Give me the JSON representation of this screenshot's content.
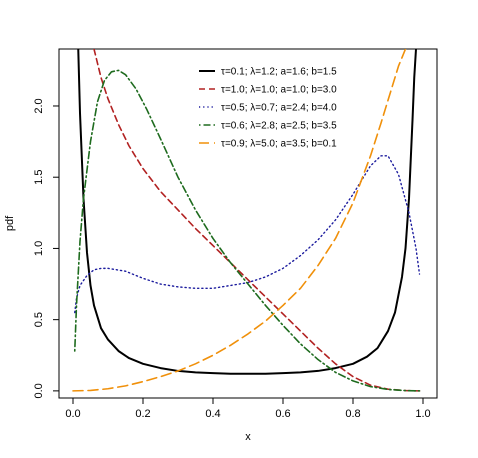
{
  "chart_data": {
    "type": "line",
    "xlabel": "x",
    "ylabel": "pdf",
    "xlim": [
      -0.04,
      1.04
    ],
    "ylim": [
      -0.05,
      2.4
    ],
    "x_ticks": [
      "0.0",
      "0.2",
      "0.4",
      "0.6",
      "0.8",
      "1.0"
    ],
    "x_tick_values": [
      0,
      0.2,
      0.4,
      0.6,
      0.8,
      1.0
    ],
    "y_ticks": [
      "0.0",
      "0.5",
      "1.0",
      "1.5",
      "2.0"
    ],
    "y_tick_values": [
      0,
      0.5,
      1.0,
      1.5,
      2.0
    ],
    "grid": false,
    "legend_position": "top-right",
    "series": [
      {
        "name": "τ=0.1; λ=1.2; a=1.6; b=1.5",
        "color": "#000000",
        "dash": "solid",
        "x": [
          0.015,
          0.02,
          0.03,
          0.04,
          0.05,
          0.06,
          0.08,
          0.1,
          0.13,
          0.16,
          0.2,
          0.25,
          0.3,
          0.35,
          0.4,
          0.45,
          0.5,
          0.55,
          0.6,
          0.65,
          0.7,
          0.75,
          0.8,
          0.84,
          0.87,
          0.9,
          0.92,
          0.94,
          0.95,
          0.96,
          0.97,
          0.975,
          0.98
        ],
        "y": [
          2.4,
          1.95,
          1.35,
          0.97,
          0.74,
          0.6,
          0.44,
          0.36,
          0.28,
          0.23,
          0.19,
          0.16,
          0.14,
          0.13,
          0.125,
          0.12,
          0.12,
          0.12,
          0.125,
          0.13,
          0.14,
          0.16,
          0.19,
          0.24,
          0.3,
          0.42,
          0.55,
          0.8,
          1.0,
          1.35,
          1.9,
          2.2,
          2.4
        ]
      },
      {
        "name": "τ=1.0; λ=1.0; a=1.0; b=3.0",
        "color": "#B22222",
        "dash": "dashed",
        "x": [
          0.06,
          0.08,
          0.1,
          0.13,
          0.16,
          0.2,
          0.25,
          0.3,
          0.35,
          0.4,
          0.45,
          0.5,
          0.55,
          0.6,
          0.65,
          0.7,
          0.75,
          0.8,
          0.85,
          0.9,
          0.95,
          0.99
        ],
        "y": [
          2.4,
          2.2,
          2.05,
          1.87,
          1.72,
          1.56,
          1.4,
          1.27,
          1.14,
          1.02,
          0.9,
          0.78,
          0.66,
          0.54,
          0.42,
          0.3,
          0.19,
          0.1,
          0.04,
          0.012,
          0.002,
          0.0
        ]
      },
      {
        "name": "τ=0.5; λ=0.7; a=2.4; b=4.0",
        "color": "#1C1C9E",
        "dash": "dotted",
        "x": [
          0.005,
          0.01,
          0.02,
          0.04,
          0.06,
          0.08,
          0.1,
          0.15,
          0.2,
          0.25,
          0.3,
          0.35,
          0.4,
          0.45,
          0.5,
          0.55,
          0.6,
          0.65,
          0.7,
          0.75,
          0.8,
          0.85,
          0.88,
          0.9,
          0.93,
          0.96,
          0.98,
          0.99
        ],
        "y": [
          0.55,
          0.65,
          0.74,
          0.81,
          0.85,
          0.86,
          0.86,
          0.84,
          0.79,
          0.75,
          0.73,
          0.72,
          0.72,
          0.74,
          0.76,
          0.8,
          0.86,
          0.95,
          1.06,
          1.2,
          1.38,
          1.58,
          1.65,
          1.65,
          1.52,
          1.25,
          1.0,
          0.82
        ]
      },
      {
        "name": "τ=0.6; λ=2.8; a=2.5; b=3.5",
        "color": "#1E6B1E",
        "dash": "dotdash",
        "x": [
          0.005,
          0.01,
          0.02,
          0.03,
          0.05,
          0.07,
          0.09,
          0.11,
          0.13,
          0.15,
          0.18,
          0.21,
          0.25,
          0.3,
          0.35,
          0.4,
          0.45,
          0.5,
          0.55,
          0.6,
          0.65,
          0.7,
          0.75,
          0.8,
          0.85,
          0.9,
          0.95,
          0.99
        ],
        "y": [
          0.28,
          0.6,
          1.05,
          1.35,
          1.75,
          2.03,
          2.18,
          2.24,
          2.25,
          2.22,
          2.12,
          1.98,
          1.77,
          1.5,
          1.27,
          1.07,
          0.9,
          0.75,
          0.6,
          0.46,
          0.33,
          0.22,
          0.13,
          0.07,
          0.03,
          0.01,
          0.002,
          0.0
        ]
      },
      {
        "name": "τ=0.9; λ=5.0; a=3.5; b=0.1",
        "color": "#F0900A",
        "dash": "longdash",
        "x": [
          0.0,
          0.05,
          0.1,
          0.15,
          0.2,
          0.25,
          0.3,
          0.35,
          0.4,
          0.45,
          0.5,
          0.55,
          0.6,
          0.65,
          0.7,
          0.75,
          0.8,
          0.85,
          0.88,
          0.91,
          0.93,
          0.95
        ],
        "y": [
          0.0,
          0.003,
          0.015,
          0.035,
          0.065,
          0.1,
          0.14,
          0.19,
          0.25,
          0.32,
          0.4,
          0.49,
          0.6,
          0.72,
          0.88,
          1.07,
          1.32,
          1.65,
          1.88,
          2.12,
          2.28,
          2.4
        ]
      }
    ]
  }
}
